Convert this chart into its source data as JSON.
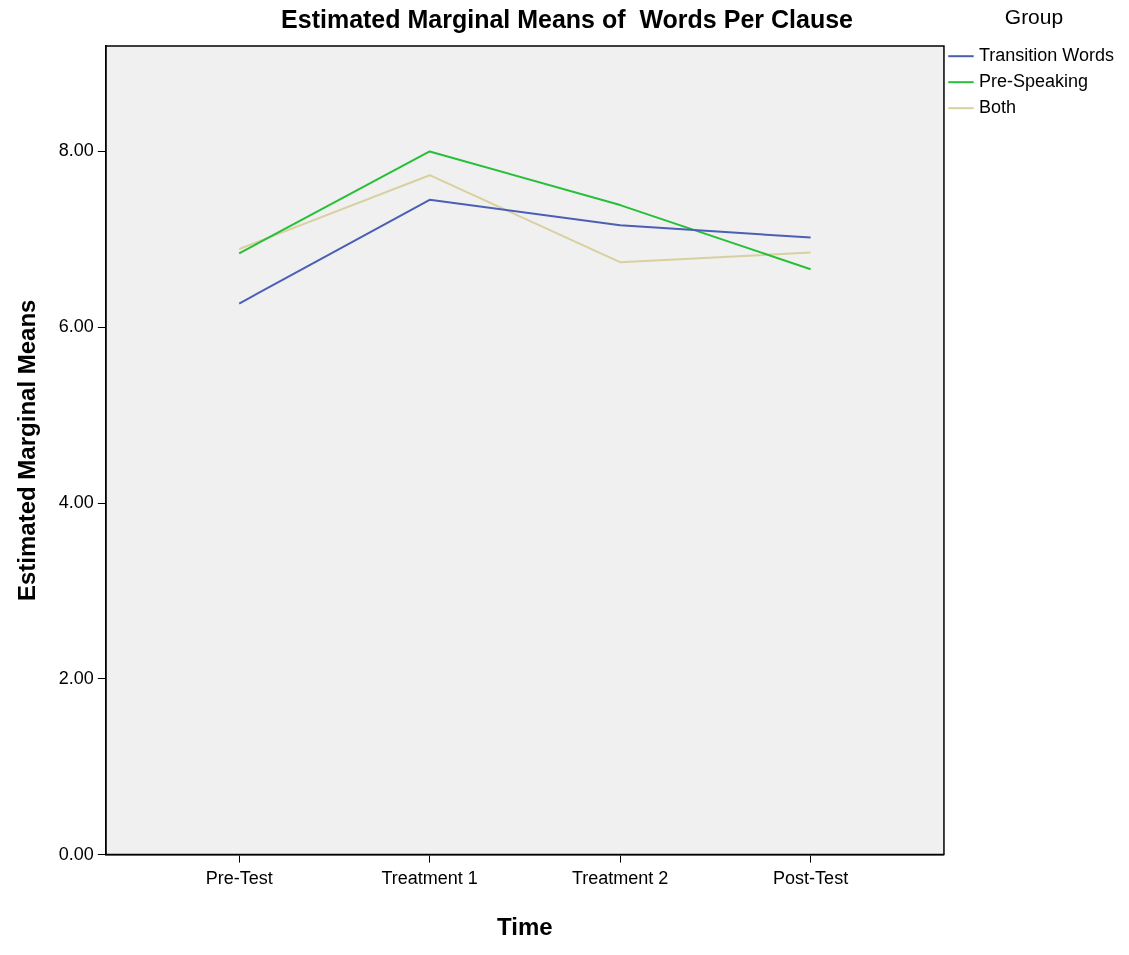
{
  "chart_data": {
    "type": "line",
    "title": "Estimated Marginal Means of  Words Per Clause",
    "xlabel": "Time",
    "ylabel": "Estimated Marginal Means",
    "legend_title": "Group",
    "categories": [
      "Pre-Test",
      "Treatment 1",
      "Treatment 2",
      "Post-Test"
    ],
    "series": [
      {
        "name": "Transition Words",
        "color": "#4b5fb4",
        "values": [
          6.27,
          7.45,
          7.16,
          7.02
        ]
      },
      {
        "name": "Pre-Speaking",
        "color": "#27bf37",
        "values": [
          6.84,
          8.0,
          7.39,
          6.66
        ]
      },
      {
        "name": "Both",
        "color": "#d8d0a0",
        "values": [
          6.89,
          7.73,
          6.74,
          6.85
        ]
      }
    ],
    "ylim": [
      0,
      9.2
    ],
    "yticks": [
      {
        "value": 0,
        "label": "0.00"
      },
      {
        "value": 2,
        "label": "2.00"
      },
      {
        "value": 4,
        "label": "4.00"
      },
      {
        "value": 6,
        "label": "6.00"
      },
      {
        "value": 8,
        "label": "8.00"
      }
    ],
    "grid": false,
    "legend": "top right",
    "marker": "none",
    "line_style": "solid"
  }
}
